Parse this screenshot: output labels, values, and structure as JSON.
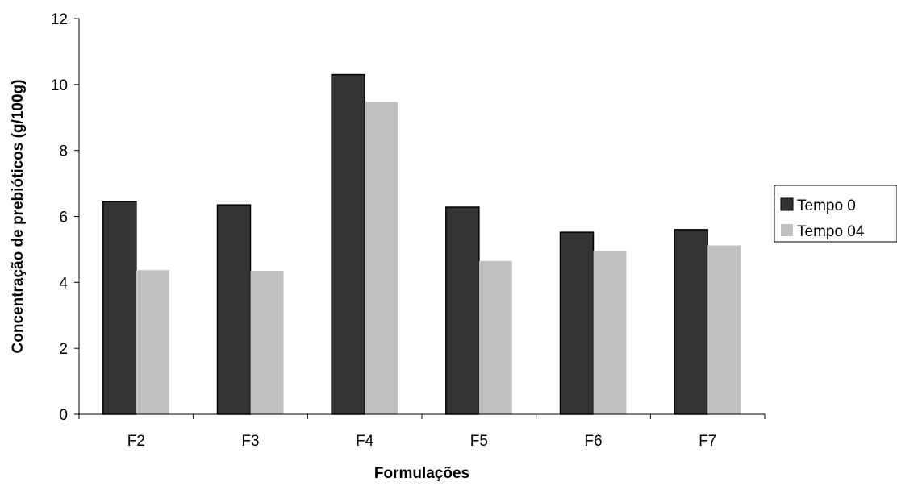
{
  "chart_data": {
    "type": "bar",
    "title": "",
    "xlabel": "Formulações",
    "ylabel": "Concentração de prebióticos (g/100g)",
    "categories": [
      "F2",
      "F3",
      "F4",
      "F5",
      "F6",
      "F7"
    ],
    "ylim": [
      0,
      12
    ],
    "yticks": [
      0,
      2,
      4,
      6,
      8,
      10,
      12
    ],
    "grid": false,
    "legend_position": "right",
    "series": [
      {
        "name": "Tempo 0",
        "color": "#333333",
        "values": [
          6.45,
          6.35,
          10.3,
          6.28,
          5.52,
          5.6
        ]
      },
      {
        "name": "Tempo 04",
        "color": "#c0c0c0",
        "values": [
          4.37,
          4.35,
          9.47,
          4.65,
          4.95,
          5.12
        ]
      }
    ]
  }
}
